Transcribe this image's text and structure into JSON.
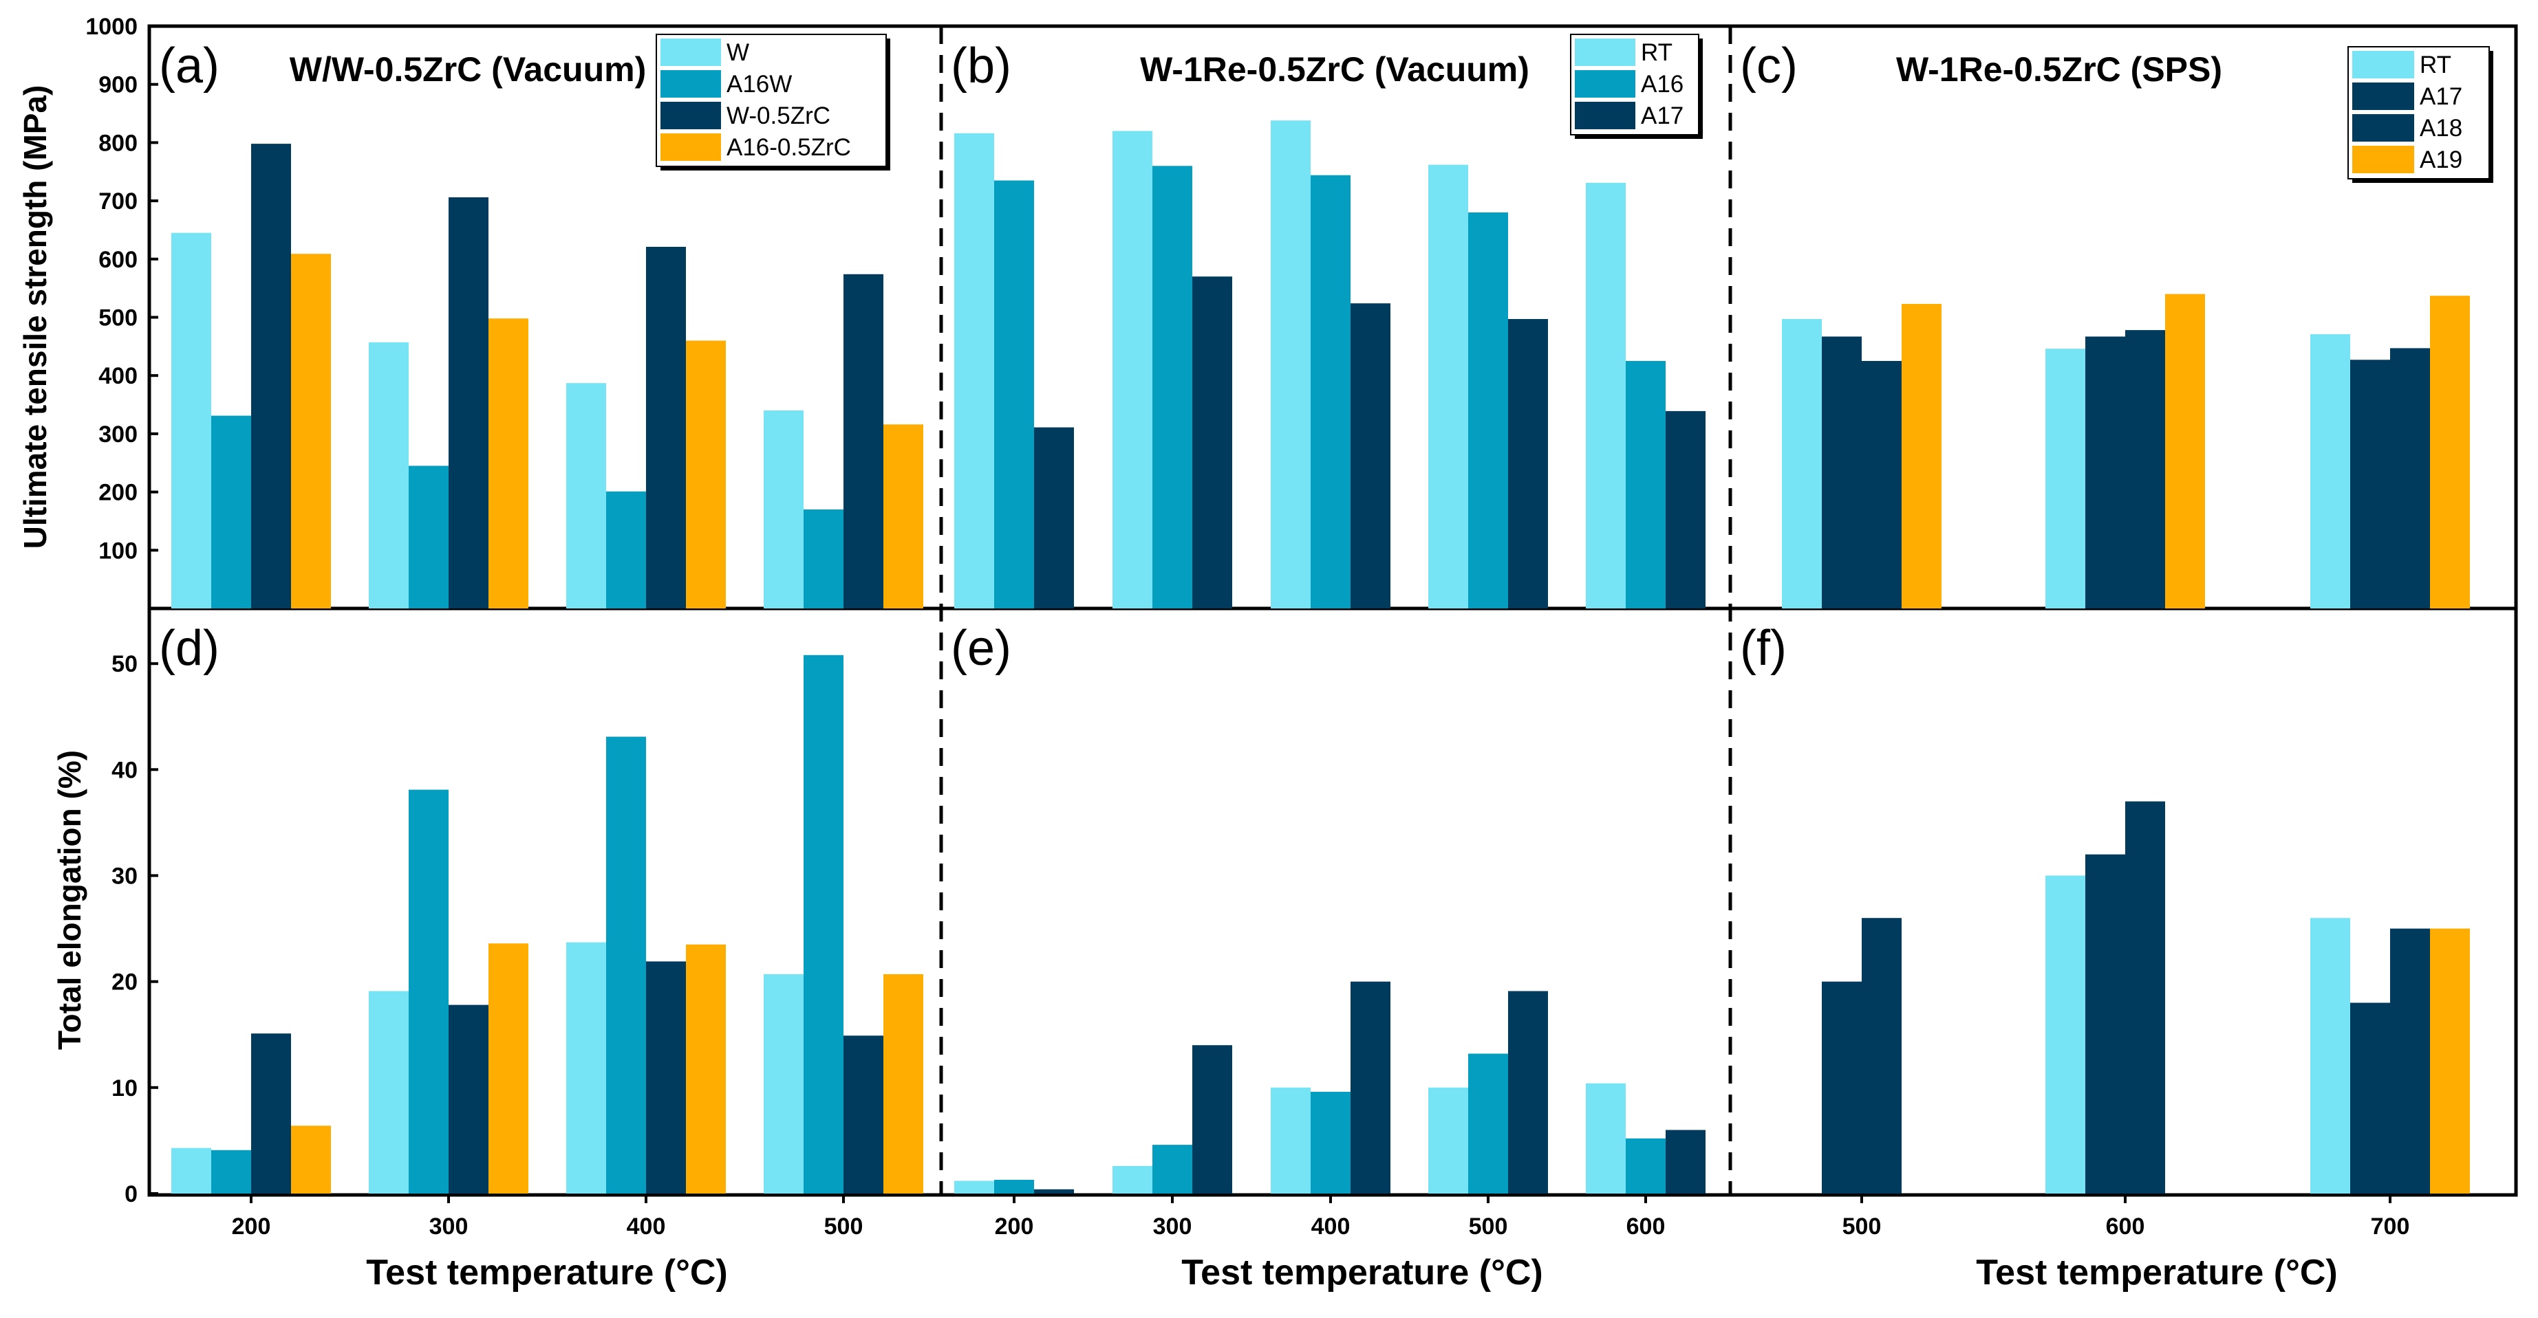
{
  "colors": {
    "W": "#76e4f5",
    "A16W": "#049fc0",
    "W-0.5ZrC": "#003a5c",
    "A16-0.5ZrC": "#ffad00",
    "RT": "#76e4f5",
    "A16": "#049fc0",
    "A17": "#003a5c",
    "A18": "#003a5c",
    "A19": "#ffad00"
  },
  "y_label_top": "Ultimate tensile strength (MPa)",
  "y_label_bottom": "Total elongation (%)",
  "x_label": "Test temperature (°C)",
  "chart_data": [
    {
      "id": "a",
      "type": "bar",
      "panel_label": "(a)",
      "title": "W/W-0.5ZrC (Vacuum)",
      "categories": [
        "200",
        "300",
        "400",
        "500"
      ],
      "series": [
        {
          "name": "W",
          "values": [
            645,
            457,
            387,
            340
          ]
        },
        {
          "name": "A16W",
          "values": [
            331,
            245,
            201,
            170
          ]
        },
        {
          "name": "W-0.5ZrC",
          "values": [
            798,
            706,
            621,
            574
          ]
        },
        {
          "name": "A16-0.5ZrC",
          "values": [
            609,
            498,
            460,
            316
          ]
        }
      ],
      "ylim": [
        0,
        1000
      ],
      "yticks": [
        100,
        200,
        300,
        400,
        500,
        600,
        700,
        800,
        900,
        1000
      ],
      "ylabel": "Ultimate tensile strength (MPa)",
      "xlabel": "",
      "legend": "top-right"
    },
    {
      "id": "b",
      "type": "bar",
      "panel_label": "(b)",
      "title": "W-1Re-0.5ZrC (Vacuum)",
      "categories": [
        "200",
        "300",
        "400",
        "500",
        "600"
      ],
      "series": [
        {
          "name": "RT",
          "values": [
            816,
            820,
            838,
            762,
            731
          ]
        },
        {
          "name": "A16",
          "values": [
            735,
            760,
            744,
            680,
            425
          ]
        },
        {
          "name": "A17",
          "values": [
            311,
            570,
            524,
            497,
            339
          ]
        }
      ],
      "ylim": [
        0,
        1000
      ],
      "legend": "top-right"
    },
    {
      "id": "c",
      "type": "bar",
      "panel_label": "(c)",
      "title": "W-1Re-0.5ZrC (SPS)",
      "categories": [
        "500",
        "600",
        "700"
      ],
      "series": [
        {
          "name": "RT",
          "values": [
            497,
            446,
            471
          ]
        },
        {
          "name": "A17",
          "values": [
            467,
            467,
            427
          ]
        },
        {
          "name": "A18",
          "values": [
            425,
            478,
            447
          ]
        },
        {
          "name": "A19",
          "values": [
            523,
            540,
            537
          ]
        }
      ],
      "ylim": [
        0,
        1000
      ],
      "legend": "top-right"
    },
    {
      "id": "d",
      "type": "bar",
      "panel_label": "(d)",
      "title": "",
      "categories": [
        "200",
        "300",
        "400",
        "500"
      ],
      "series": [
        {
          "name": "W",
          "values": [
            4.3,
            19.1,
            23.7,
            20.7
          ]
        },
        {
          "name": "A16W",
          "values": [
            4.1,
            38.1,
            43.1,
            50.8
          ]
        },
        {
          "name": "W-0.5ZrC",
          "values": [
            15.1,
            17.8,
            21.9,
            14.9
          ]
        },
        {
          "name": "A16-0.5ZrC",
          "values": [
            6.4,
            23.6,
            23.5,
            20.7
          ]
        }
      ],
      "ylim": [
        0,
        55
      ],
      "yticks": [
        0,
        10,
        20,
        30,
        40,
        50
      ],
      "ylabel": "Total elongation (%)",
      "xlabel": "Test temperature (°C)"
    },
    {
      "id": "e",
      "type": "bar",
      "panel_label": "(e)",
      "title": "",
      "categories": [
        "200",
        "300",
        "400",
        "500",
        "600"
      ],
      "series": [
        {
          "name": "RT",
          "values": [
            1.2,
            2.6,
            10.0,
            10.0,
            10.4
          ]
        },
        {
          "name": "A16",
          "values": [
            1.3,
            4.6,
            9.6,
            13.2,
            5.2
          ]
        },
        {
          "name": "A17",
          "values": [
            0.4,
            14.0,
            20.0,
            19.1,
            6.0
          ]
        }
      ],
      "ylim": [
        0,
        55
      ],
      "xlabel": "Test temperature (°C)"
    },
    {
      "id": "f",
      "type": "bar",
      "panel_label": "(f)",
      "title": "",
      "categories": [
        "500",
        "600",
        "700"
      ],
      "series": [
        {
          "name": "RT",
          "values": [
            0,
            30.0,
            26.0
          ]
        },
        {
          "name": "A17",
          "values": [
            20.0,
            32.0,
            18.0
          ]
        },
        {
          "name": "A18",
          "values": [
            26.0,
            37.0,
            25.0
          ]
        },
        {
          "name": "A19",
          "values": [
            0,
            0,
            25.0
          ]
        }
      ],
      "ylim": [
        0,
        55
      ],
      "xlabel": "Test temperature (°C)"
    }
  ]
}
